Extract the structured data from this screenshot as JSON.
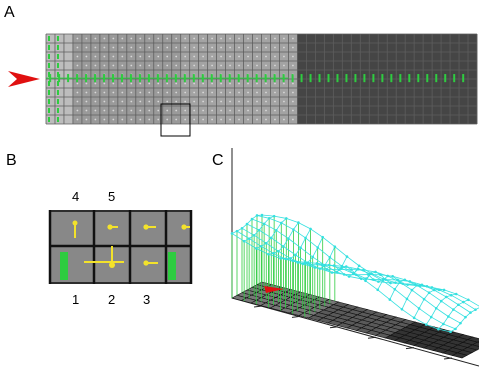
{
  "panels": {
    "a": {
      "label": "A"
    },
    "b": {
      "label": "B",
      "numbers": [
        "4",
        "5",
        "1",
        "2",
        "3"
      ]
    },
    "c": {
      "label": "C"
    }
  },
  "colors": {
    "grid_light": "#b8b8b8",
    "grid_mid": "#8e8e8e",
    "grid_dark": "#444444",
    "grid_line": "#5a5a5a",
    "green": "#2ecc40",
    "arrow_red": "#e01010",
    "yellow": "#f3e22b",
    "cyan": "#35e0e0",
    "cell_gray": "#8a8a8a",
    "black": "#111111"
  }
}
